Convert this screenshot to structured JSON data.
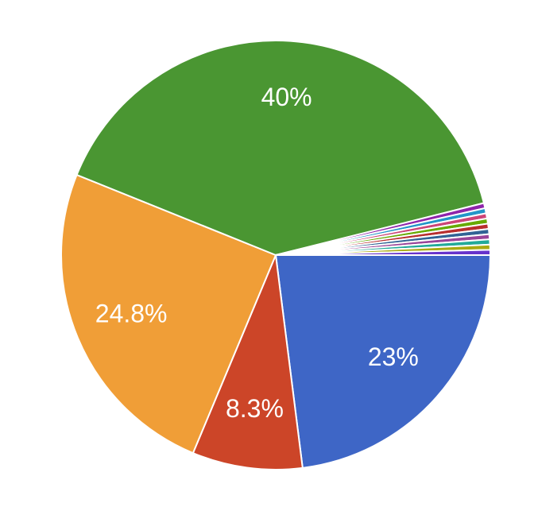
{
  "chart_data": {
    "type": "pie",
    "values": [
      23,
      8.3,
      24.8,
      40,
      0.39,
      0.39,
      0.39,
      0.39,
      0.39,
      0.39,
      0.39,
      0.39,
      0.39,
      0.39
    ],
    "value_labels": [
      "23%",
      "8.3%",
      "24.8%",
      "40%",
      null,
      null,
      null,
      null,
      null,
      null,
      null,
      null,
      null,
      null
    ],
    "colors": [
      "#3e66c6",
      "#cc4528",
      "#f09e37",
      "#4a9632",
      "#8e24aa",
      "#2196c8",
      "#cc4477",
      "#66aa00",
      "#b82e2e",
      "#316395",
      "#994499",
      "#22aa99",
      "#aaaa11",
      "#6633cc"
    ]
  }
}
